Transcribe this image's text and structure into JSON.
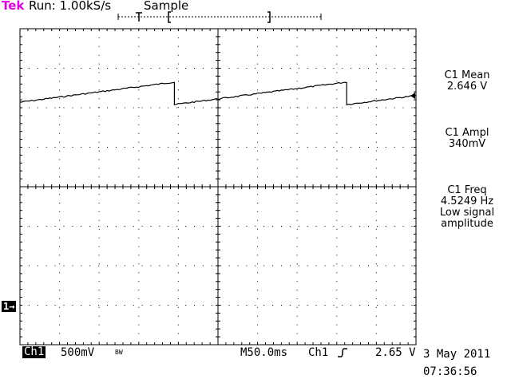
{
  "header": {
    "brand": "Tek",
    "run_status": "Run: 1.00kS/s",
    "acquisition_mode": "Sample"
  },
  "measurements": {
    "mean_label": "C1 Mean",
    "mean_value": "2.646 V",
    "ampl_label": "C1 Ampl",
    "ampl_value": "340mV",
    "freq_label": "C1 Freq",
    "freq_value": "4.5249 Hz",
    "freq_note_line1": "Low signal",
    "freq_note_line2": "amplitude"
  },
  "bottom_bar": {
    "channel": "Ch1",
    "volts_per_div": "500mV",
    "bw_limit": "BW",
    "timebase": "M50.0ms",
    "trigger_source": "Ch1",
    "trigger_slope_icon": "rising-edge-icon",
    "trigger_level": "2.65 V"
  },
  "datetime": {
    "date": "3 May 2011",
    "time": "07:36:56"
  },
  "markers": {
    "ground_marker": "1→"
  },
  "colors": {
    "brand": "#e000e0",
    "trace": "#000000",
    "grid": "#000000",
    "background": "#ffffff"
  },
  "waveform": {
    "type": "sawtooth",
    "upper_level_divisions": 2.75,
    "lower_level_divisions": 2.1,
    "reset_times_divisions": [
      3.9,
      8.25
    ]
  }
}
